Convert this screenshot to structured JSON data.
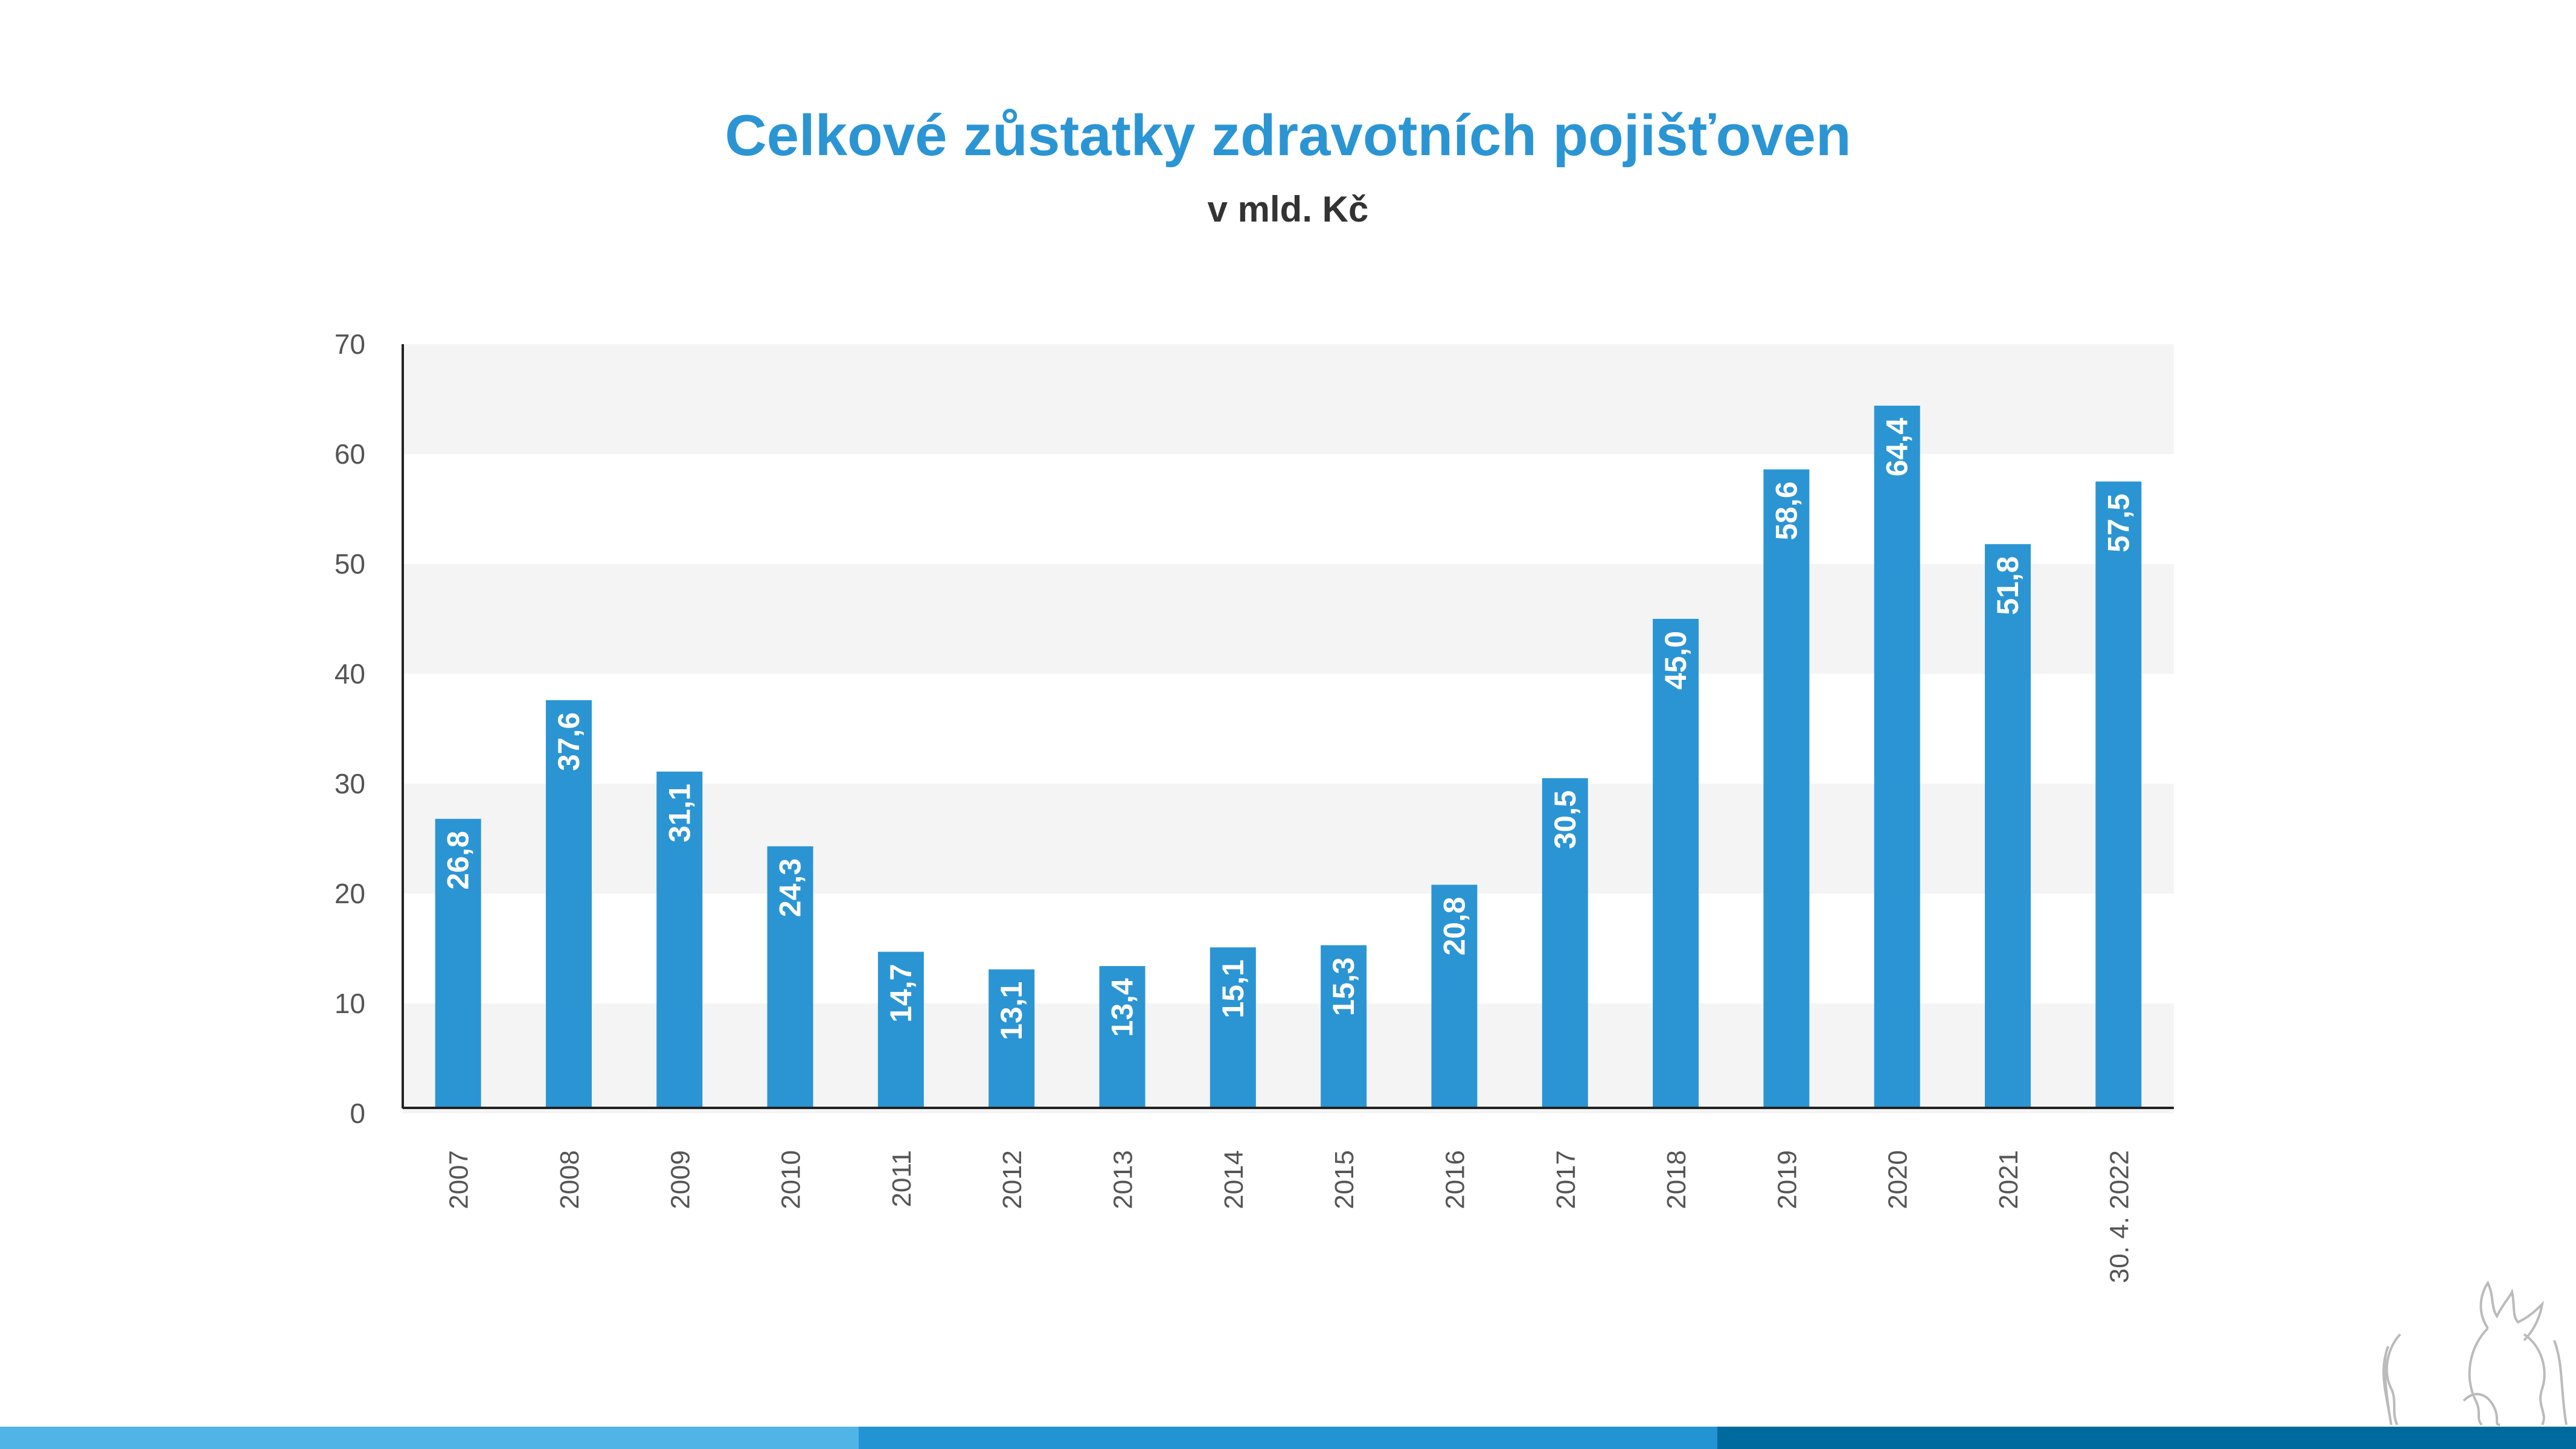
{
  "chart_data": {
    "type": "bar",
    "title": "Celkové zůstatky zdravotních pojišťoven",
    "subtitle": "v mld. Kč",
    "xlabel": "",
    "ylabel": "",
    "ylim": [
      0,
      70
    ],
    "yticks": [
      "0",
      "10",
      "20",
      "30",
      "40",
      "50",
      "60",
      "70"
    ],
    "grid": "alternating horizontal bands",
    "legend": "none",
    "categories": [
      "2007",
      "2008",
      "2009",
      "2010",
      "2011",
      "2012",
      "2013",
      "2014",
      "2015",
      "2016",
      "2017",
      "2018",
      "2019",
      "2020",
      "2021",
      "30. 4. 2022"
    ],
    "values": [
      26.8,
      37.6,
      31.1,
      24.3,
      14.7,
      13.1,
      13.4,
      15.1,
      15.3,
      20.8,
      30.5,
      45.0,
      58.6,
      64.4,
      51.8,
      57.5
    ],
    "value_labels": [
      "26,8",
      "37,6",
      "31,1",
      "24,3",
      "14,7",
      "13,1",
      "13,4",
      "15,1",
      "15,3",
      "20,8",
      "30,5",
      "45,0",
      "58,6",
      "64,4",
      "51,8",
      "57,5"
    ]
  },
  "colors": {
    "bar": "#2b95d3",
    "band": "#f4f4f4",
    "title": "#2b95d4",
    "footer": [
      "#50b5e6",
      "#2394d3",
      "#006a9e"
    ]
  },
  "logo": {
    "icon": "czech-coat-of-arms-lion-icon"
  }
}
